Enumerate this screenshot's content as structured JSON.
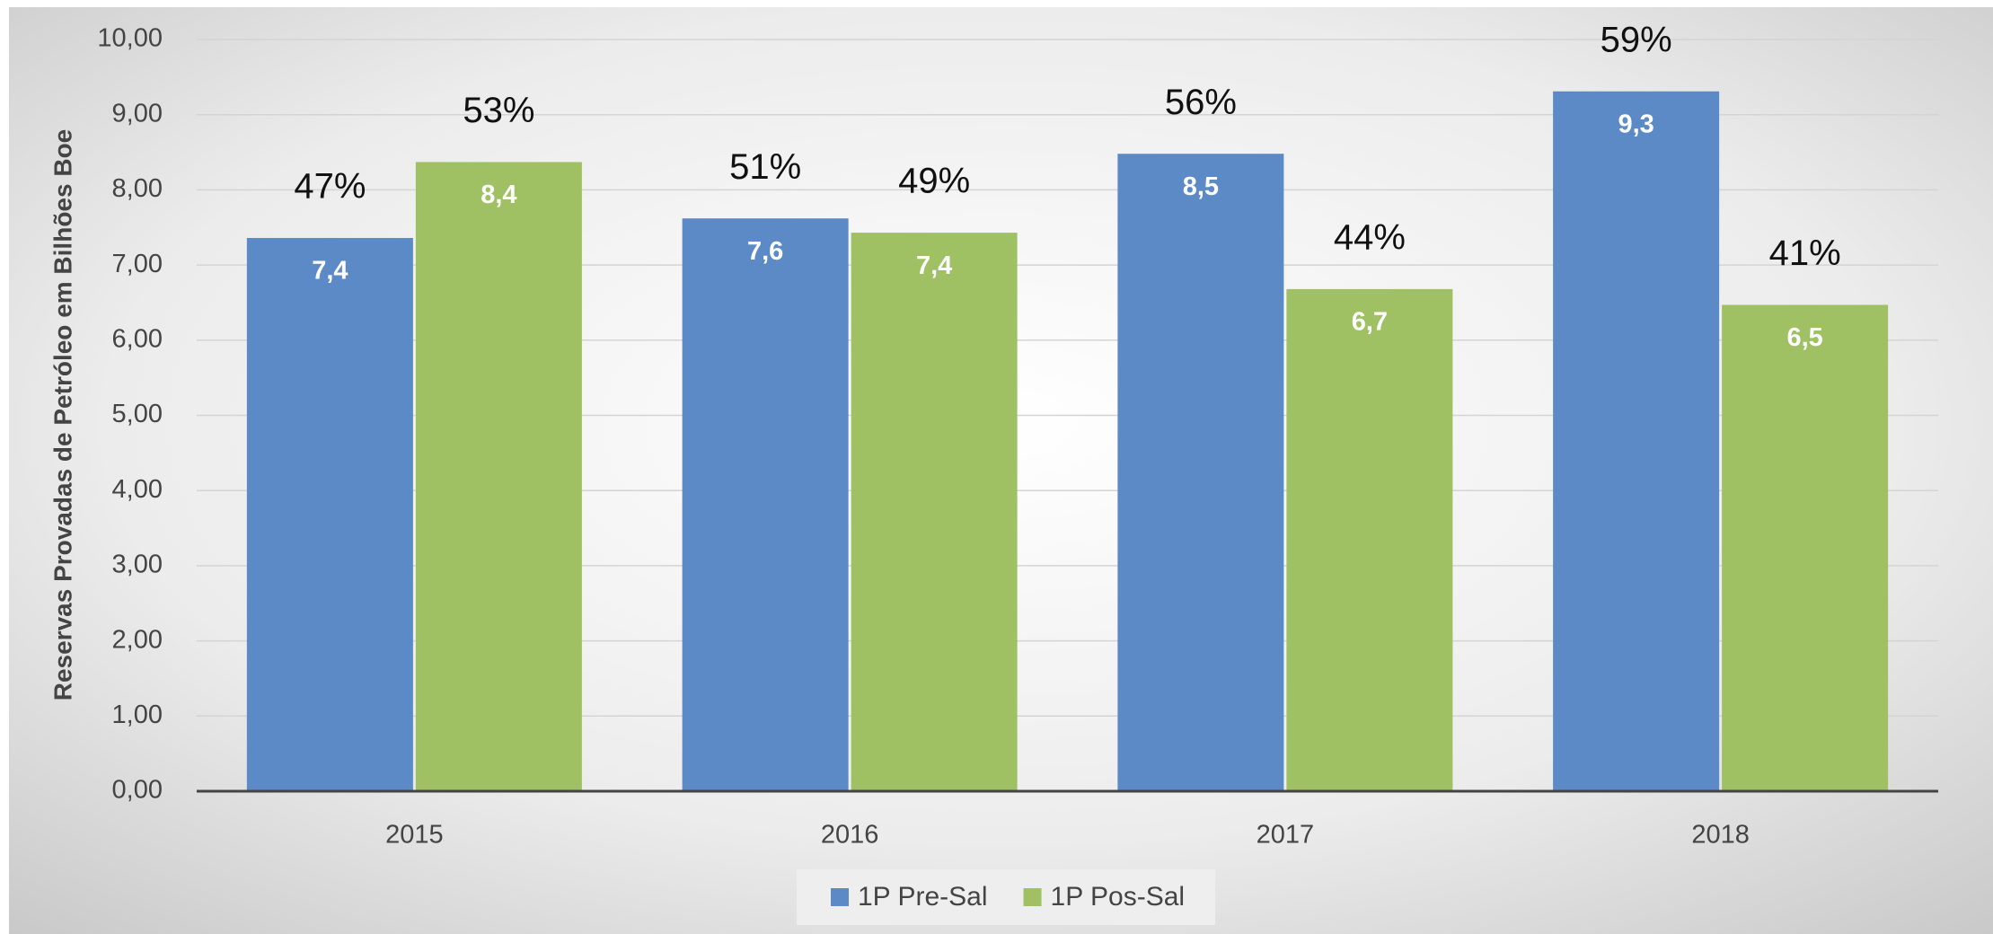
{
  "chart_data": {
    "type": "bar",
    "y_label": "Reservas Provadas de Petróleo em Bilhões Boe",
    "categories": [
      "2015",
      "2016",
      "2017",
      "2018"
    ],
    "series": [
      {
        "name": "1P Pre-Sal",
        "color": "#5b8ac6",
        "values": [
          7.36,
          7.62,
          8.48,
          9.31
        ],
        "value_labels": [
          "7,4",
          "7,6",
          "8,5",
          "9,3"
        ],
        "shares": [
          47,
          51,
          56,
          59
        ],
        "share_labels": [
          "47%",
          "51%",
          "56%",
          "59%"
        ]
      },
      {
        "name": "1P Pos-Sal",
        "color": "#9fc163",
        "values": [
          8.37,
          7.43,
          6.68,
          6.47
        ],
        "value_labels": [
          "8,4",
          "7,4",
          "6,7",
          "6,5"
        ],
        "shares": [
          53,
          49,
          44,
          41
        ],
        "share_labels": [
          "53%",
          "49%",
          "44%",
          "41%"
        ]
      }
    ],
    "ylim": [
      0,
      10
    ],
    "yticks": [
      {
        "value": 0,
        "label": "0,00"
      },
      {
        "value": 1,
        "label": "1,00"
      },
      {
        "value": 2,
        "label": "2,00"
      },
      {
        "value": 3,
        "label": "3,00"
      },
      {
        "value": 4,
        "label": "4,00"
      },
      {
        "value": 5,
        "label": "5,00"
      },
      {
        "value": 6,
        "label": "6,00"
      },
      {
        "value": 7,
        "label": "7,00"
      },
      {
        "value": 8,
        "label": "8,00"
      },
      {
        "value": 9,
        "label": "9,00"
      },
      {
        "value": 10,
        "label": "10,00"
      }
    ],
    "grid": true,
    "legend": "bottom"
  }
}
